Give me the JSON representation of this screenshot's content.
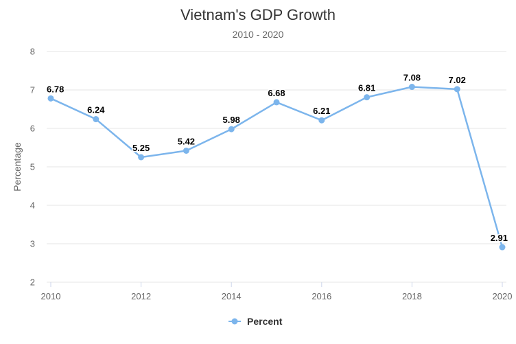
{
  "chart_data": {
    "type": "line",
    "title": "Vietnam's GDP Growth",
    "subtitle": "2010 - 2020",
    "xlabel": "",
    "ylabel": "Percentage",
    "x": [
      2010,
      2011,
      2012,
      2013,
      2014,
      2015,
      2016,
      2017,
      2018,
      2019,
      2020
    ],
    "x_ticks": [
      "2010",
      "2012",
      "2014",
      "2016",
      "2018",
      "2020"
    ],
    "xlim": [
      2010,
      2020
    ],
    "ylim": [
      2,
      8
    ],
    "y_ticks": [
      "2",
      "3",
      "4",
      "5",
      "6",
      "7",
      "8"
    ],
    "grid": true,
    "legend_position": "bottom-center",
    "series": [
      {
        "name": "Percent",
        "color": "#7cb5ec",
        "values": [
          6.78,
          6.24,
          5.25,
          5.42,
          5.98,
          6.68,
          6.21,
          6.81,
          7.08,
          7.02,
          2.91
        ],
        "labels": [
          "6.78",
          "6.24",
          "5.25",
          "5.42",
          "5.98",
          "6.68",
          "6.21",
          "6.81",
          "7.08",
          "7.02",
          "2.91"
        ]
      }
    ]
  }
}
